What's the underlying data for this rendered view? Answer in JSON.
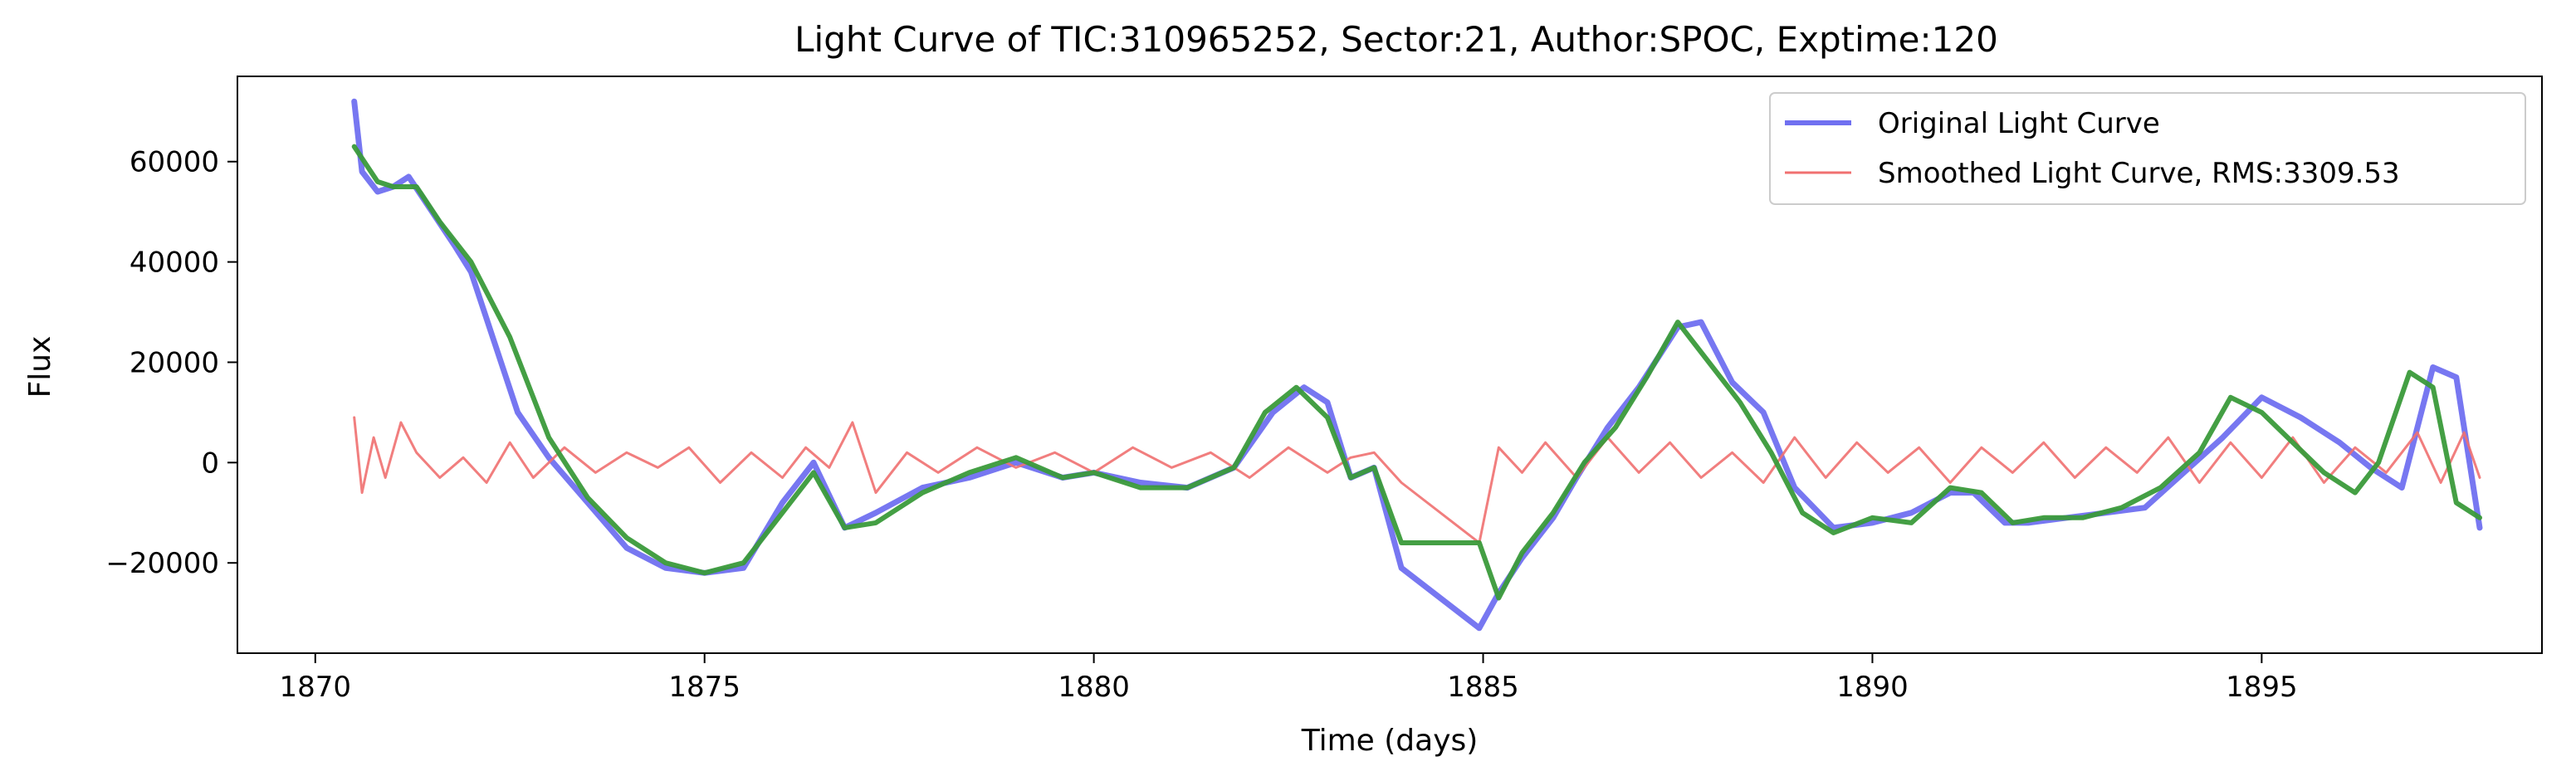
{
  "chart_data": {
    "type": "line",
    "title": "Light Curve of TIC:310965252, Sector:21, Author:SPOC, Exptime:120",
    "xlabel": "Time (days)",
    "ylabel": "Flux",
    "xlim": [
      1869.0,
      1898.6
    ],
    "ylim": [
      -38000,
      77000
    ],
    "xticks": [
      1870,
      1875,
      1880,
      1885,
      1890,
      1895
    ],
    "xtick_labels": [
      "1870",
      "1875",
      "1880",
      "1885",
      "1890",
      "1895"
    ],
    "yticks": [
      -20000,
      0,
      20000,
      40000,
      60000
    ],
    "ytick_labels": [
      "−20000",
      "0",
      "20000",
      "40000",
      "60000"
    ],
    "grid": false,
    "legend": {
      "placement": "top-right",
      "entries": [
        "Original Light Curve",
        "Smoothed Light Curve, RMS:3309.53"
      ]
    },
    "colors": {
      "original": "#7070f0",
      "smoothed": "#f07070",
      "trend": "#3a9a3a"
    },
    "series": [
      {
        "name": "Original Light Curve",
        "role": "original",
        "x": [
          1870.5,
          1870.6,
          1870.8,
          1871.0,
          1871.2,
          1871.5,
          1871.8,
          1872.0,
          1872.3,
          1872.6,
          1873.0,
          1873.5,
          1874.0,
          1874.5,
          1875.0,
          1875.5,
          1876.0,
          1876.4,
          1876.8,
          1877.2,
          1877.8,
          1878.4,
          1879.0,
          1879.6,
          1880.0,
          1880.6,
          1881.2,
          1881.8,
          1882.3,
          1882.7,
          1883.0,
          1883.3,
          1883.6,
          1883.95,
          1884.95,
          1885.2,
          1885.5,
          1885.9,
          1886.2,
          1886.6,
          1887.0,
          1887.5,
          1887.8,
          1888.2,
          1888.6,
          1889.0,
          1889.5,
          1890.0,
          1890.5,
          1891.0,
          1891.3,
          1891.7,
          1892.0,
          1892.5,
          1893.0,
          1893.5,
          1894.0,
          1894.5,
          1895.0,
          1895.5,
          1896.0,
          1896.4,
          1896.8,
          1897.2,
          1897.5,
          1897.8
        ],
        "y": [
          72000,
          58000,
          54000,
          55000,
          57000,
          50000,
          43000,
          38000,
          24000,
          10000,
          1000,
          -8000,
          -17000,
          -21000,
          -22000,
          -21000,
          -8000,
          0,
          -13000,
          -10000,
          -5000,
          -3000,
          0,
          -3000,
          -2000,
          -4000,
          -5000,
          -1000,
          10000,
          15000,
          12000,
          -3000,
          -1000,
          -21000,
          -33000,
          -26000,
          -19000,
          -11000,
          -3000,
          7000,
          15000,
          27000,
          28000,
          16000,
          10000,
          -5000,
          -13000,
          -12000,
          -10000,
          -6000,
          -6000,
          -12000,
          -12000,
          -11000,
          -10000,
          -9000,
          -2000,
          5000,
          13000,
          9000,
          4000,
          -1000,
          -5000,
          19000,
          17000,
          -13000
        ]
      },
      {
        "name": "Smoothed Light Curve, RMS:3309.53",
        "role": "residual",
        "x": [
          1870.5,
          1870.6,
          1870.75,
          1870.9,
          1871.1,
          1871.3,
          1871.6,
          1871.9,
          1872.2,
          1872.5,
          1872.8,
          1873.2,
          1873.6,
          1874.0,
          1874.4,
          1874.8,
          1875.2,
          1875.6,
          1876.0,
          1876.3,
          1876.6,
          1876.9,
          1877.2,
          1877.6,
          1878.0,
          1878.5,
          1879.0,
          1879.5,
          1880.0,
          1880.5,
          1881.0,
          1881.5,
          1882.0,
          1882.5,
          1883.0,
          1883.3,
          1883.6,
          1883.95,
          1884.95,
          1885.2,
          1885.5,
          1885.8,
          1886.2,
          1886.6,
          1887.0,
          1887.4,
          1887.8,
          1888.2,
          1888.6,
          1889.0,
          1889.4,
          1889.8,
          1890.2,
          1890.6,
          1891.0,
          1891.4,
          1891.8,
          1892.2,
          1892.6,
          1893.0,
          1893.4,
          1893.8,
          1894.2,
          1894.6,
          1895.0,
          1895.4,
          1895.8,
          1896.2,
          1896.6,
          1897.0,
          1897.3,
          1897.6,
          1897.8
        ],
        "y": [
          9000,
          -6000,
          5000,
          -3000,
          8000,
          2000,
          -3000,
          1000,
          -4000,
          4000,
          -3000,
          3000,
          -2000,
          2000,
          -1000,
          3000,
          -4000,
          2000,
          -3000,
          3000,
          -1000,
          8000,
          -6000,
          2000,
          -2000,
          3000,
          -1000,
          2000,
          -2000,
          3000,
          -1000,
          2000,
          -3000,
          3000,
          -2000,
          1000,
          2000,
          -4000,
          -16000,
          3000,
          -2000,
          4000,
          -3000,
          5000,
          -2000,
          4000,
          -3000,
          2000,
          -4000,
          5000,
          -3000,
          4000,
          -2000,
          3000,
          -4000,
          3000,
          -2000,
          4000,
          -3000,
          3000,
          -2000,
          5000,
          -4000,
          4000,
          -3000,
          5000,
          -4000,
          3000,
          -2000,
          6000,
          -4000,
          6000,
          -3000
        ]
      },
      {
        "name": "",
        "role": "trend",
        "x": [
          1870.5,
          1870.8,
          1871.0,
          1871.3,
          1871.6,
          1872.0,
          1872.5,
          1873.0,
          1873.5,
          1874.0,
          1874.5,
          1875.0,
          1875.5,
          1876.0,
          1876.4,
          1876.8,
          1877.2,
          1877.8,
          1878.4,
          1879.0,
          1879.6,
          1880.0,
          1880.6,
          1881.2,
          1881.8,
          1882.2,
          1882.6,
          1883.0,
          1883.3,
          1883.6,
          1883.95,
          1884.95,
          1885.2,
          1885.5,
          1885.9,
          1886.3,
          1886.7,
          1887.1,
          1887.5,
          1887.9,
          1888.3,
          1888.7,
          1889.1,
          1889.5,
          1890.0,
          1890.5,
          1891.0,
          1891.4,
          1891.8,
          1892.2,
          1892.7,
          1893.2,
          1893.7,
          1894.2,
          1894.6,
          1895.0,
          1895.4,
          1895.8,
          1896.2,
          1896.5,
          1896.9,
          1897.2,
          1897.5,
          1897.8
        ],
        "y": [
          63000,
          56000,
          55000,
          55000,
          48000,
          40000,
          25000,
          5000,
          -7000,
          -15000,
          -20000,
          -22000,
          -20000,
          -10000,
          -2000,
          -13000,
          -12000,
          -6000,
          -2000,
          1000,
          -3000,
          -2000,
          -5000,
          -5000,
          -1000,
          10000,
          15000,
          9000,
          -3000,
          -1000,
          -16000,
          -16000,
          -27000,
          -18000,
          -10000,
          0,
          7000,
          17000,
          28000,
          20000,
          12000,
          2000,
          -10000,
          -14000,
          -11000,
          -12000,
          -5000,
          -6000,
          -12000,
          -11000,
          -11000,
          -9000,
          -5000,
          2000,
          13000,
          10000,
          4000,
          -2000,
          -6000,
          0,
          18000,
          15000,
          -8000,
          -11000
        ]
      }
    ]
  }
}
